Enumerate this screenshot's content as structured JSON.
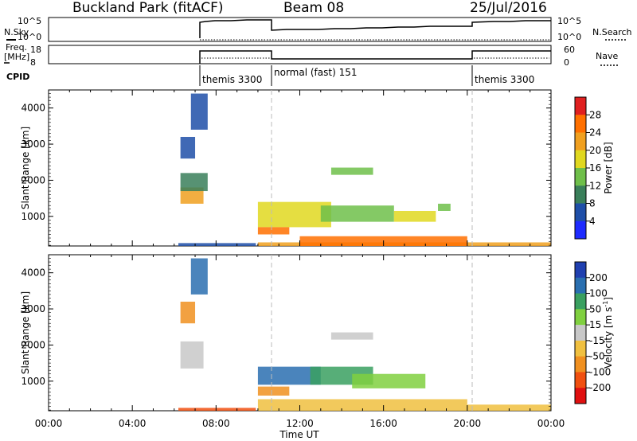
{
  "header": {
    "title": "Buckland Park (fitACF)",
    "beam": "Beam 08",
    "date": "25/Jul/2016"
  },
  "params": {
    "nsky_label": "N.Sky",
    "nsky_ticks": [
      "10^5",
      "10^0"
    ],
    "nsearch_label": "N.Search",
    "nsearch_ticks": [
      "10^5",
      "10^0"
    ],
    "freq_label": "Freq.",
    "freq_unit": "[MHz]",
    "freq_ticks": [
      "18",
      "8"
    ],
    "nave_label": "Nave",
    "nave_ticks": [
      "60",
      "0"
    ],
    "cpid_label": "CPID",
    "modes": [
      {
        "label": "themis 3300",
        "start_h": 6.2,
        "end_h": 9.9
      },
      {
        "label": "normal (fast) 151",
        "start_h": 9.9,
        "end_h": 19.9
      },
      {
        "label": "themis 3300",
        "start_h": 19.9,
        "end_h": 24.0
      }
    ]
  },
  "axes": {
    "ylabel": "Slant Range [km]",
    "xlabel": "Time UT",
    "xticks": [
      "00:00",
      "04:00",
      "08:00",
      "12:00",
      "16:00",
      "20:00",
      "00:00"
    ],
    "yticks": [
      "1000",
      "2000",
      "3000",
      "4000"
    ]
  },
  "colorbars": {
    "power": {
      "label": "Power [dB]",
      "ticks": [
        "4",
        "8",
        "12",
        "16",
        "20",
        "24",
        "28"
      ],
      "colors": [
        "#1e2bff",
        "#1f4fa8",
        "#3a7f5a",
        "#6fbf4a",
        "#e0d820",
        "#f0a020",
        "#ff7000",
        "#e02020"
      ]
    },
    "velocity": {
      "label": "Velocity [m s",
      "label_sup": "-1",
      "label_end": "]",
      "ticks": [
        "200",
        "100",
        "50",
        "15",
        "-15",
        "-50",
        "-100",
        "-200"
      ],
      "colors": [
        "#2040b0",
        "#2a6fb0",
        "#3aa060",
        "#80d040",
        "#c8c8c8",
        "#f0c040",
        "#f09020",
        "#f05010",
        "#e01010"
      ]
    }
  },
  "chart_data": [
    {
      "type": "heatmap",
      "title": "Buckland Park (fitACF)",
      "xlabel": "Time UT",
      "ylabel": "Slant Range [km]",
      "xlim": [
        0,
        24
      ],
      "ylim": [
        180,
        4500
      ],
      "colorbar_label": "Power [dB]",
      "clim": [
        0,
        32
      ],
      "regions": [
        {
          "t": [
            6.3,
            7.4
          ],
          "r": [
            1350,
            1800
          ],
          "level": 20
        },
        {
          "t": [
            6.3,
            7.6
          ],
          "r": [
            1700,
            2200
          ],
          "level": 10
        },
        {
          "t": [
            6.3,
            7.0
          ],
          "r": [
            2600,
            3200
          ],
          "level": 7
        },
        {
          "t": [
            6.8,
            7.6
          ],
          "r": [
            3400,
            4400
          ],
          "level": 5
        },
        {
          "t": [
            10.0,
            13.5
          ],
          "r": [
            700,
            1400
          ],
          "level": 16
        },
        {
          "t": [
            13.0,
            16.5
          ],
          "r": [
            850,
            1300
          ],
          "level": 14
        },
        {
          "t": [
            16.5,
            18.5
          ],
          "r": [
            850,
            1150
          ],
          "level": 18
        },
        {
          "t": [
            10.0,
            11.5
          ],
          "r": [
            500,
            700
          ],
          "level": 24
        },
        {
          "t": [
            10.0,
            24.0
          ],
          "r": [
            180,
            280
          ],
          "level": 22
        },
        {
          "t": [
            12.0,
            20.0
          ],
          "r": [
            180,
            450
          ],
          "level": 26
        },
        {
          "t": [
            13.5,
            15.5
          ],
          "r": [
            2150,
            2350
          ],
          "level": 14
        },
        {
          "t": [
            18.6,
            19.2
          ],
          "r": [
            1150,
            1350
          ],
          "level": 12
        },
        {
          "t": [
            6.2,
            9.9
          ],
          "r": [
            180,
            260
          ],
          "level": 6
        }
      ]
    },
    {
      "type": "heatmap",
      "title": "Buckland Park (fitACF)",
      "xlabel": "Time UT",
      "ylabel": "Slant Range [km]",
      "xlim": [
        0,
        24
      ],
      "ylim": [
        180,
        4500
      ],
      "colorbar_label": "Velocity [m s-1]",
      "clim": [
        -200,
        200
      ],
      "regions": [
        {
          "t": [
            6.3,
            7.4
          ],
          "r": [
            1350,
            2100
          ],
          "level": 0
        },
        {
          "t": [
            6.3,
            7.0
          ],
          "r": [
            2600,
            3200
          ],
          "level": -60
        },
        {
          "t": [
            6.8,
            7.6
          ],
          "r": [
            3400,
            4400
          ],
          "level": 150
        },
        {
          "t": [
            10.0,
            13.0
          ],
          "r": [
            900,
            1400
          ],
          "level": 150
        },
        {
          "t": [
            12.5,
            15.5
          ],
          "r": [
            900,
            1400
          ],
          "level": 60
        },
        {
          "t": [
            14.5,
            18.0
          ],
          "r": [
            800,
            1200
          ],
          "level": 40
        },
        {
          "t": [
            10.0,
            11.5
          ],
          "r": [
            600,
            850
          ],
          "level": -100
        },
        {
          "t": [
            10.0,
            20.0
          ],
          "r": [
            180,
            500
          ],
          "level": -40
        },
        {
          "t": [
            20.0,
            24.0
          ],
          "r": [
            180,
            350
          ],
          "level": -30
        },
        {
          "t": [
            13.5,
            15.5
          ],
          "r": [
            2150,
            2350
          ],
          "level": 10
        },
        {
          "t": [
            6.2,
            9.9
          ],
          "r": [
            180,
            260
          ],
          "level": -150
        }
      ]
    }
  ]
}
